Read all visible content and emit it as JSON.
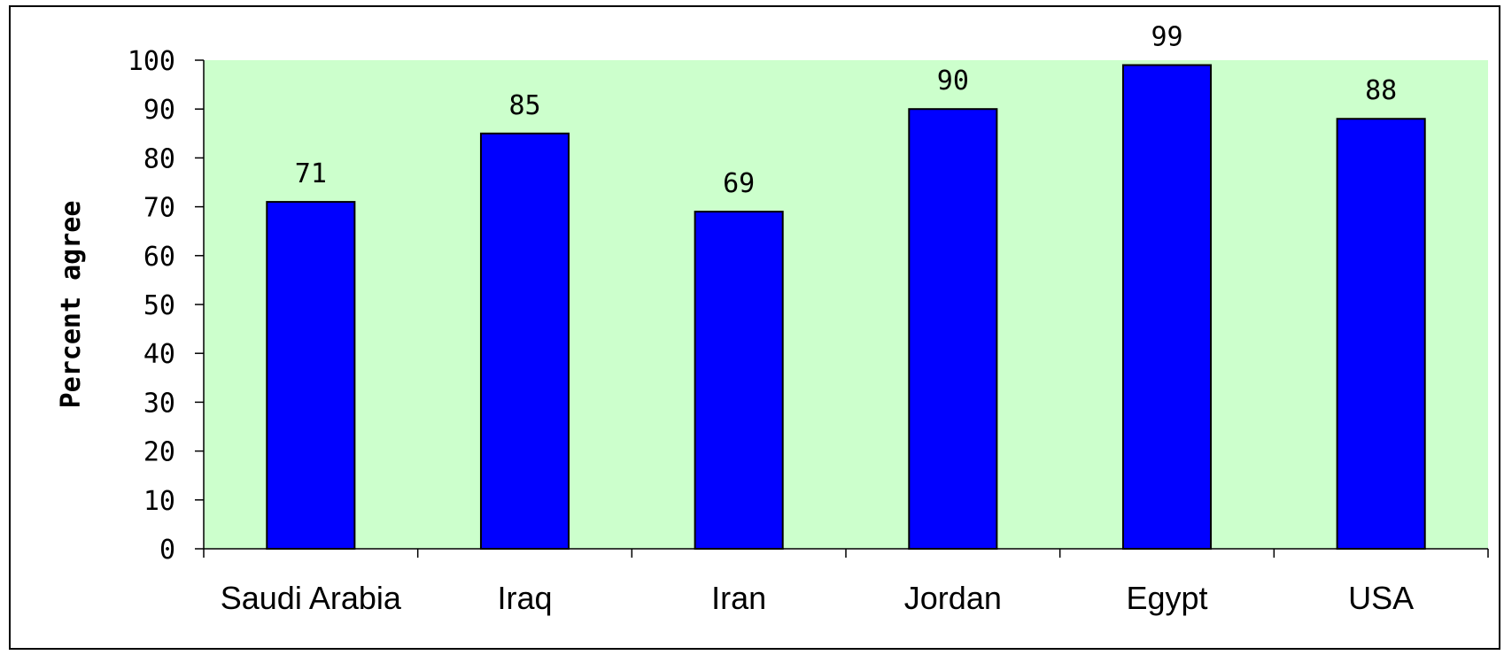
{
  "chart_data": {
    "type": "bar",
    "categories": [
      "Saudi Arabia",
      "Iraq",
      "Iran",
      "Jordan",
      "Egypt",
      "USA"
    ],
    "values": [
      71,
      85,
      69,
      90,
      99,
      88
    ],
    "data_labels": [
      "71",
      "85",
      "69",
      "90",
      "99",
      "88"
    ],
    "title": "",
    "xlabel": "",
    "ylabel": "Percent agree",
    "ylim": [
      0,
      100
    ],
    "yticks": [
      0,
      10,
      20,
      30,
      40,
      50,
      60,
      70,
      80,
      90,
      100
    ],
    "grid": false,
    "legend": "none",
    "colors": {
      "plot_background": "#ccffcc",
      "bar_fill": "#0000ff",
      "bar_stroke": "#000000"
    }
  }
}
